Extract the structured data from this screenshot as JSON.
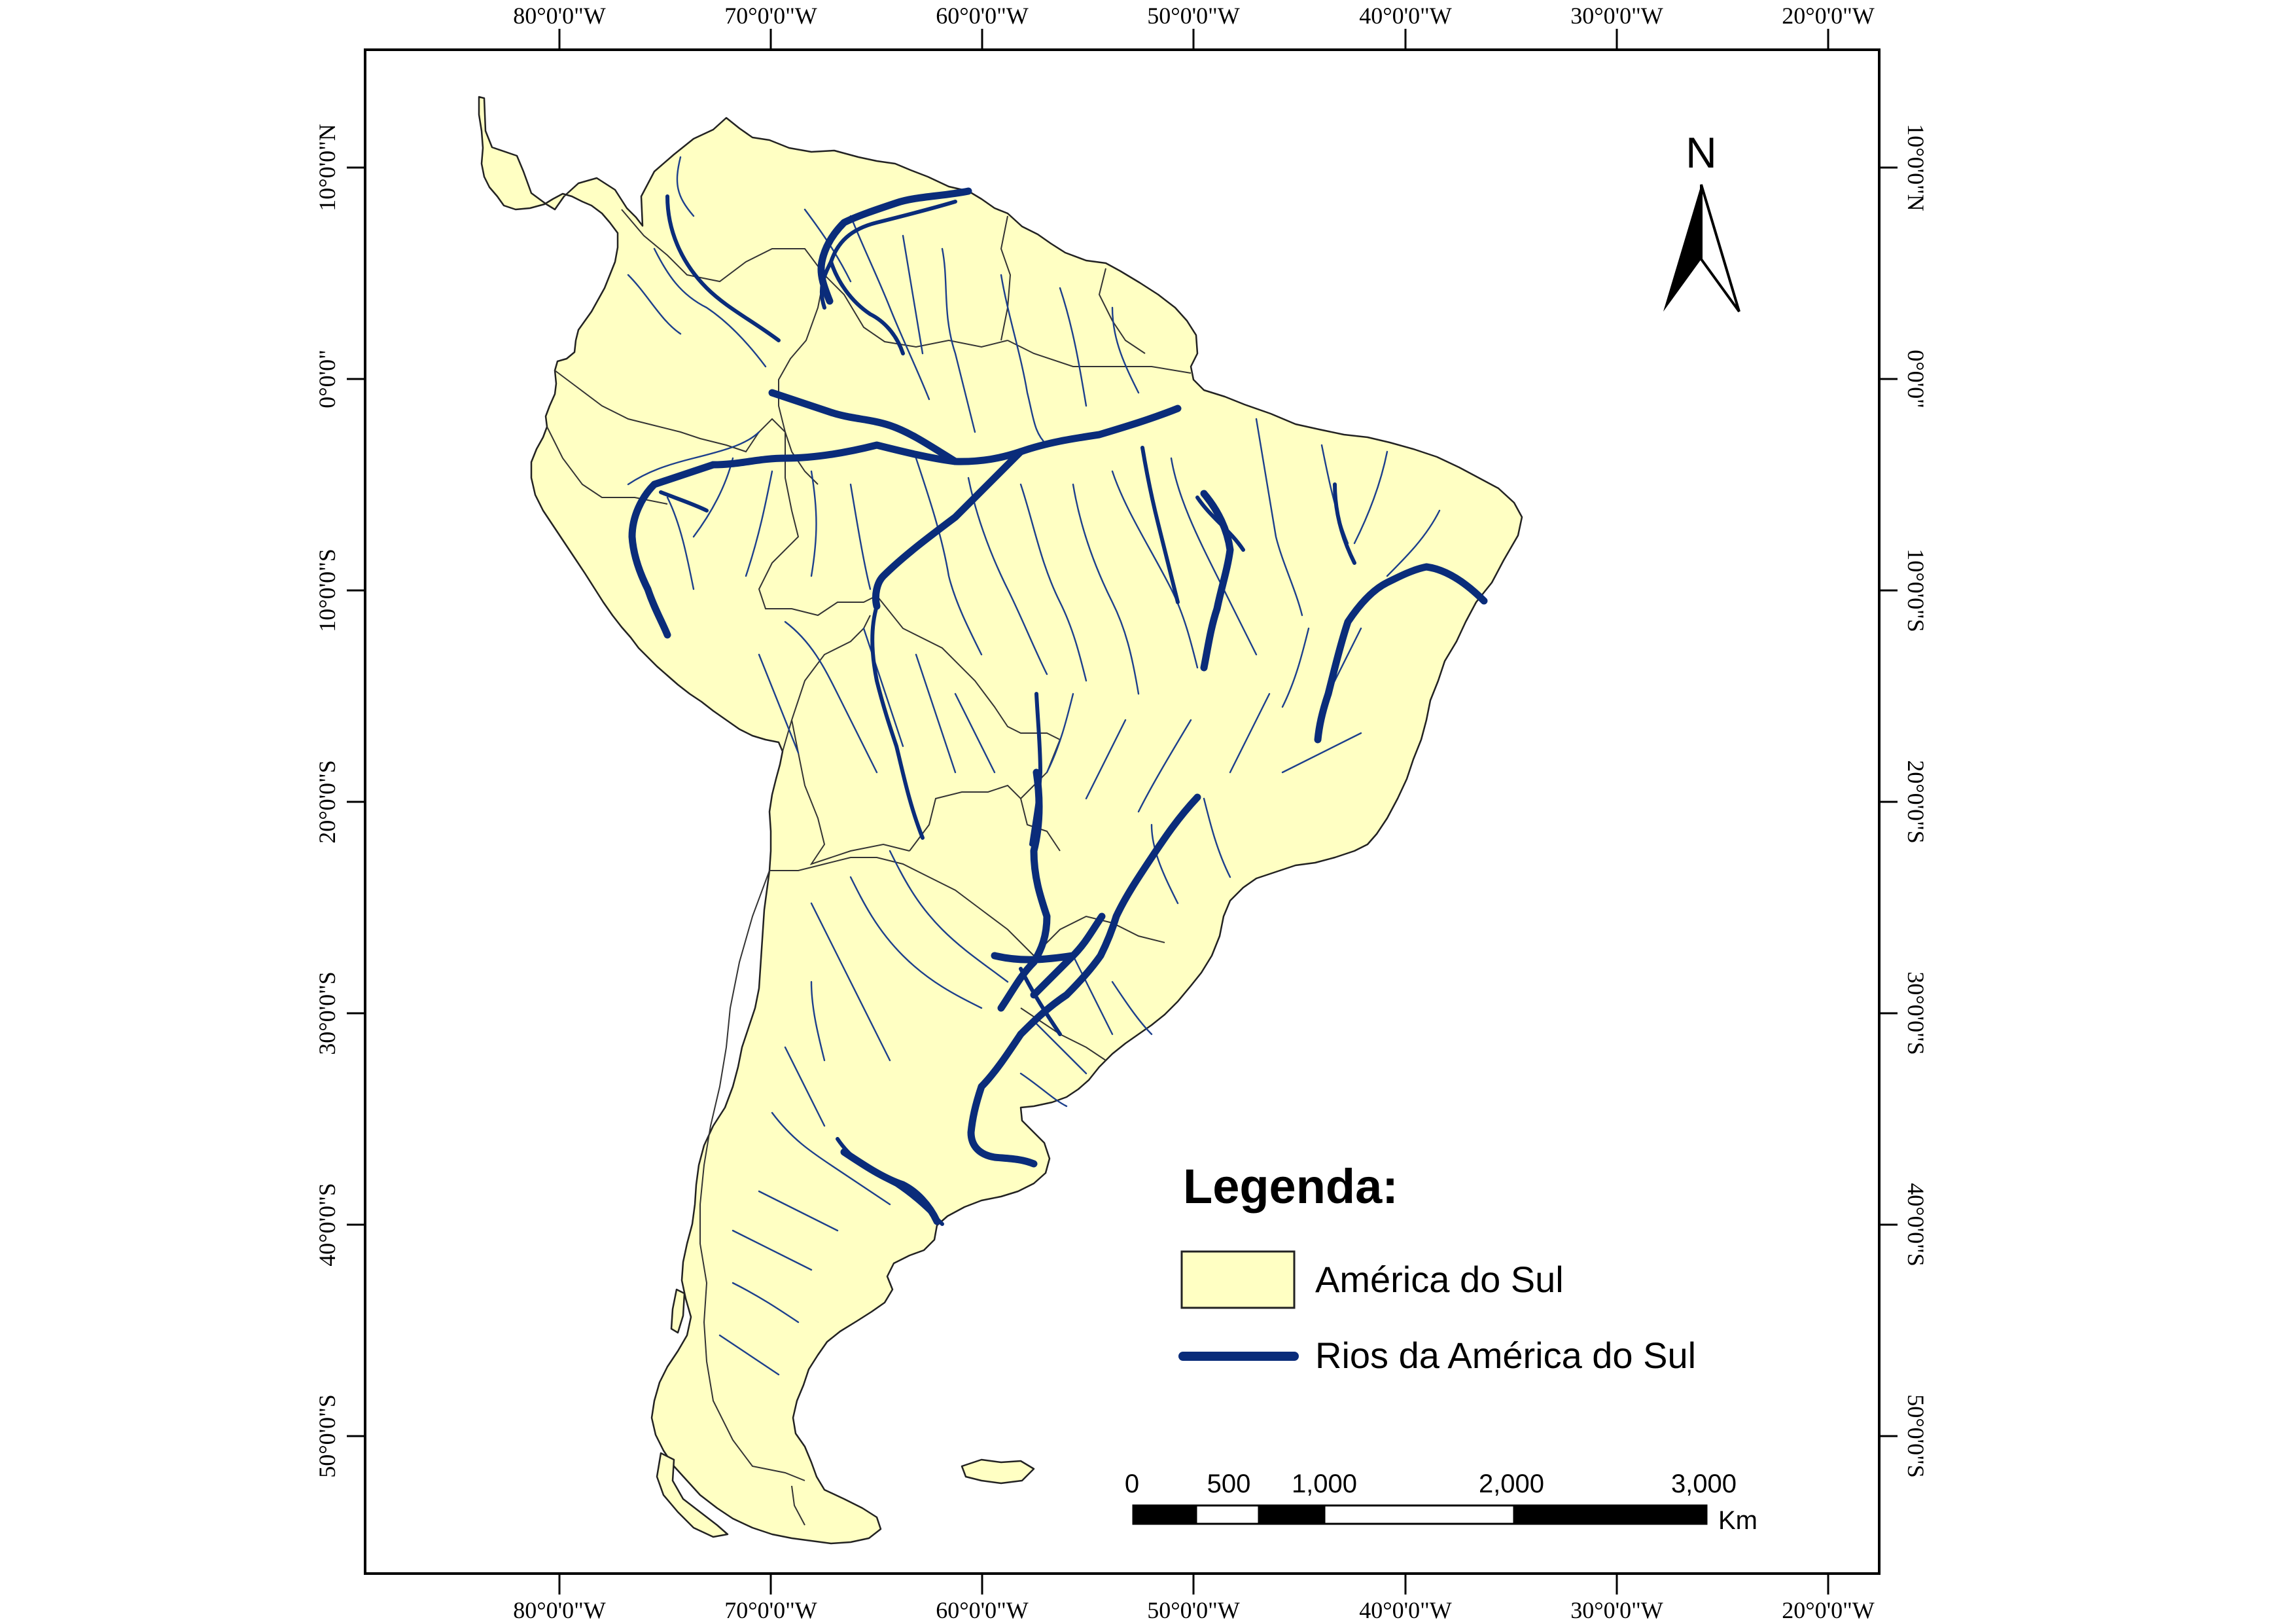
{
  "map": {
    "top_longitude_labels": [
      "80°0'0\"W",
      "70°0'0\"W",
      "60°0'0\"W",
      "50°0'0\"W",
      "40°0'0\"W",
      "30°0'0\"W",
      "20°0'0\"W"
    ],
    "bottom_longitude_labels": [
      "80°0'0\"W",
      "70°0'0\"W",
      "60°0'0\"W",
      "50°0'0\"W",
      "40°0'0\"W",
      "30°0'0\"W",
      "20°0'0\"W"
    ],
    "left_latitude_labels": [
      "10°0'0\"N",
      "0°0'0\"",
      "10°0'0\"S",
      "20°0'0\"S",
      "30°0'0\"S",
      "40°0'0\"S",
      "50°0'0\"S"
    ],
    "right_latitude_labels": [
      "10°0'0\"N",
      "0°0'0\"",
      "10°0'0\"S",
      "20°0'0\"S",
      "30°0'0\"S",
      "40°0'0\"S",
      "50°0'0\"S"
    ],
    "colors": {
      "land": "#FFFFC3",
      "rivers": "#0a2c7a",
      "borders": "#333333"
    }
  },
  "north_arrow": {
    "label": "N"
  },
  "legend": {
    "title": "Legenda:",
    "items": [
      {
        "label": "América do Sul",
        "symbol": "land-patch"
      },
      {
        "label": "Rios da América do Sul",
        "symbol": "river-line"
      }
    ]
  },
  "scale_bar": {
    "labels": [
      "0",
      "500",
      "1,000",
      "2,000",
      "3,000"
    ],
    "unit": "Km"
  }
}
